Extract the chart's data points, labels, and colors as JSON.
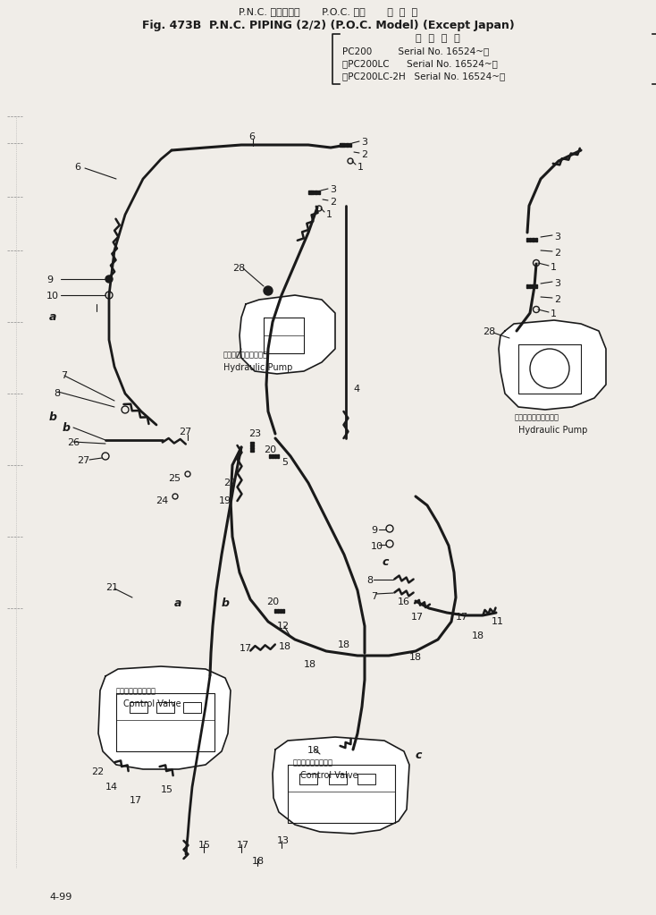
{
  "bg_color": "#f0ede8",
  "line_color": "#1a1a1a",
  "text_color": "#1a1a1a",
  "fig_width": 7.34,
  "fig_height": 10.23,
  "dpi": 100,
  "title1": "P.N.C. パイピング       P.O.C. 仕様       海  外  向",
  "title2": "Fig. 473B  P.N.C. PIPING (2/2) (P.O.C. Model) (Except Japan)",
  "serial_hdr": "適  用  号  機",
  "serial1": "PC200         Serial No. 16524~）",
  "serial2": "（PC200LC      Serial No. 16524~）",
  "serial3": "（PC200LC-2H   Serial No. 16524~）",
  "page": "4-99"
}
